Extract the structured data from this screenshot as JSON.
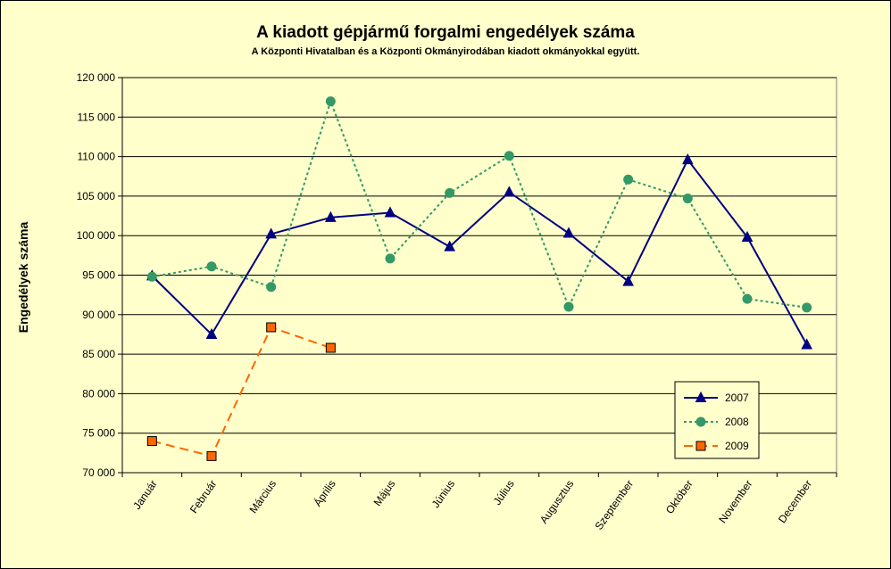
{
  "chart_data": {
    "type": "line",
    "title": "A  kiadott gépjármű forgalmi engedélyek száma",
    "subtitle": "A  Központi Hivatalban és a Központi Okmányirodában kiadott okmányokkal együtt.",
    "xlabel": "",
    "ylabel": "Engedélyek száma",
    "categories": [
      "Január",
      "Február",
      "Március",
      "Április",
      "Május",
      "Június",
      "Július",
      "Augusztus",
      "Szeptember",
      "Október",
      "November",
      "December"
    ],
    "ylim": [
      70000,
      120000
    ],
    "yticks": [
      70000,
      75000,
      80000,
      85000,
      90000,
      95000,
      100000,
      105000,
      110000,
      115000,
      120000
    ],
    "ytick_labels": [
      "70 000",
      "75 000",
      "80 000",
      "85 000",
      "90 000",
      "95 000",
      "100 000",
      "105 000",
      "110 000",
      "115 000",
      "120 000"
    ],
    "grid": true,
    "legend_position": "bottom-right",
    "series": [
      {
        "name": "2007",
        "color": "#000080",
        "marker": "triangle",
        "line_style": "solid",
        "values": [
          94900,
          87500,
          100200,
          102300,
          102900,
          98600,
          105500,
          100300,
          94200,
          109600,
          99800,
          86200
        ]
      },
      {
        "name": "2008",
        "color": "#339966",
        "marker": "circle",
        "line_style": "dotted",
        "values": [
          94800,
          96100,
          93500,
          117000,
          97100,
          105400,
          110100,
          91000,
          107100,
          104700,
          92000,
          90900
        ]
      },
      {
        "name": "2009",
        "color": "#FF6600",
        "marker": "square",
        "line_style": "dashed",
        "values": [
          74000,
          72100,
          88400,
          85800,
          null,
          null,
          null,
          null,
          null,
          null,
          null,
          null
        ]
      }
    ]
  },
  "colors": {
    "background": "#FFFFCC",
    "plot_area": "#FFFFCC",
    "gridline": "#000000"
  }
}
